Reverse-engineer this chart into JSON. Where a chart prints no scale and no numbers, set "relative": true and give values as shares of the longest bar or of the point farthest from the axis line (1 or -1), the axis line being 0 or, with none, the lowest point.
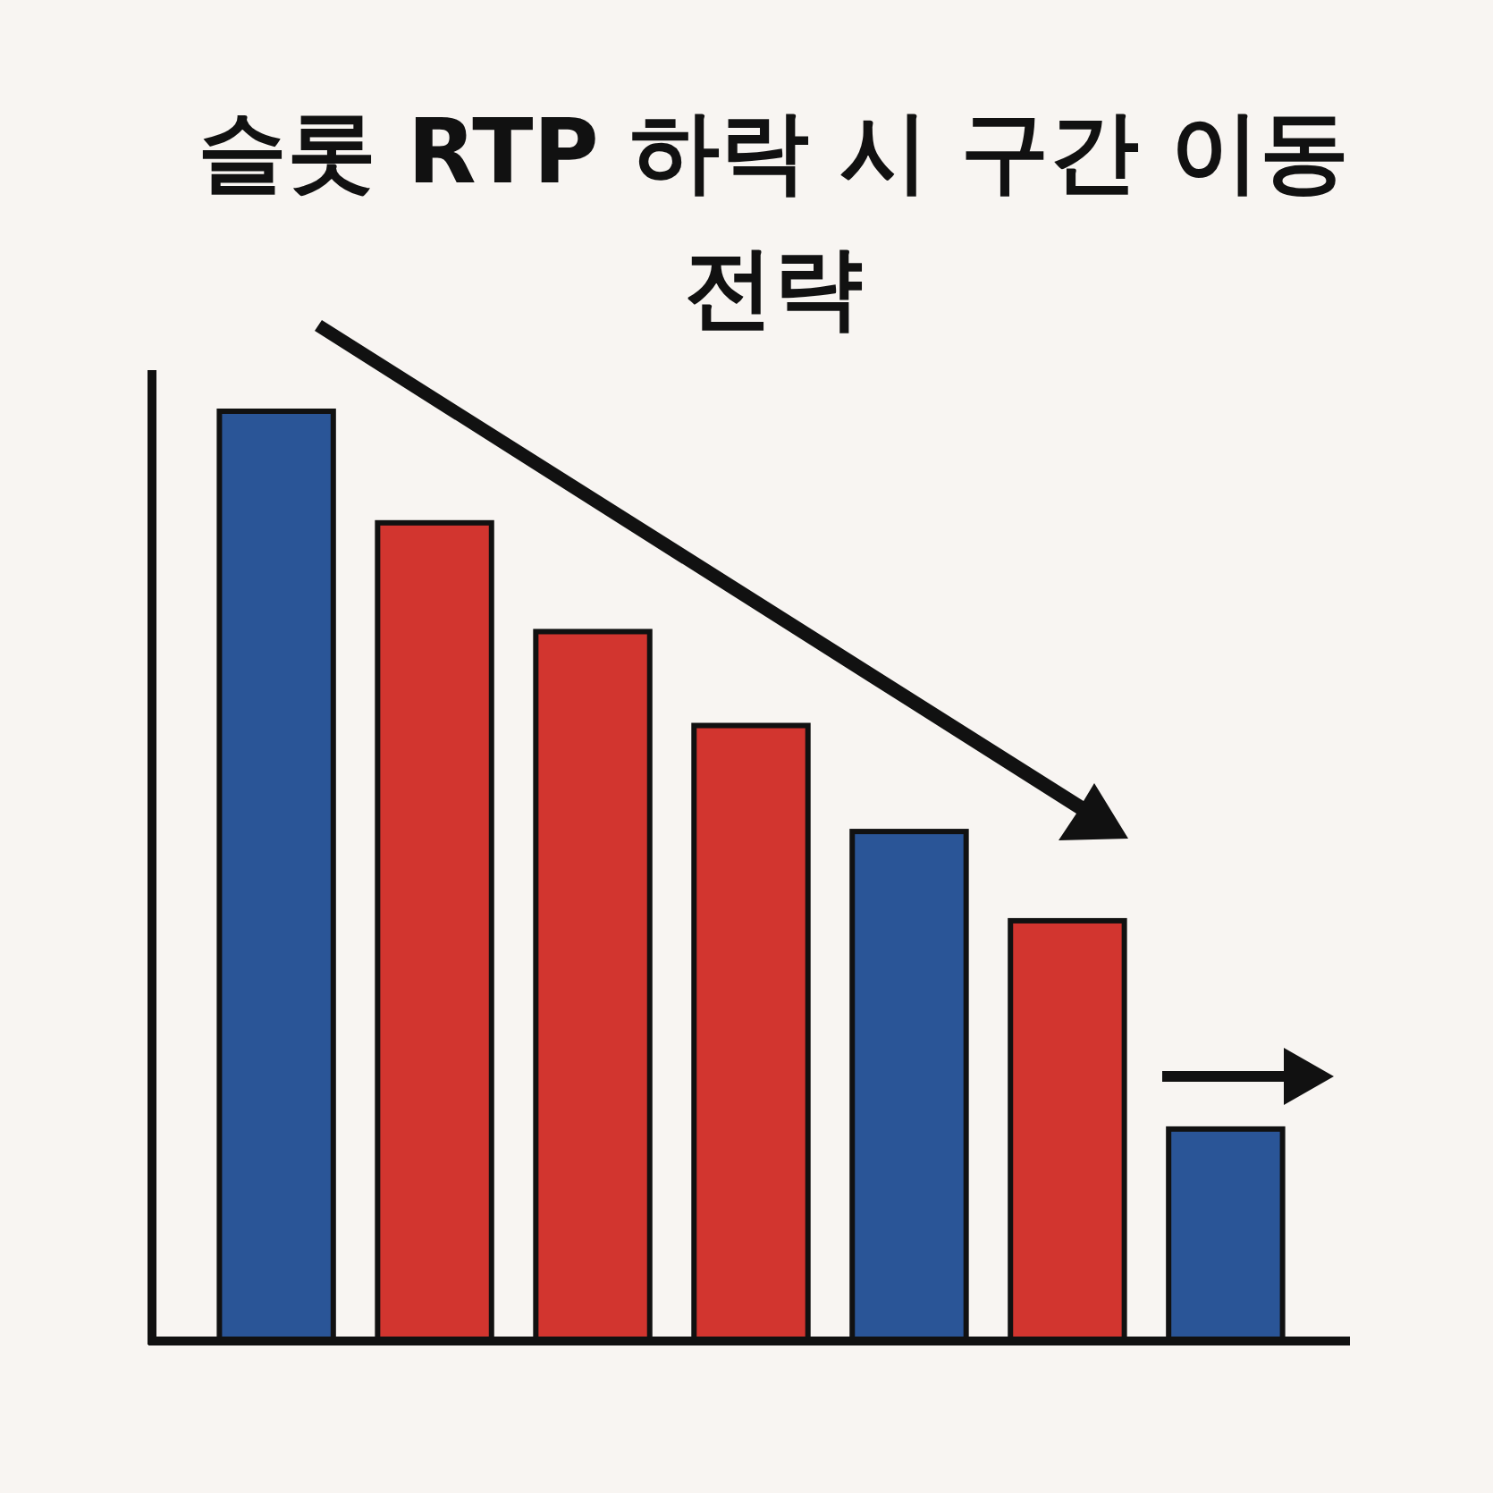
{
  "chart_data": {
    "type": "bar",
    "title": "슬롯 RTP 하락 시 구간 이동 전략",
    "relative": true,
    "categories": [
      null,
      null,
      null,
      null,
      null,
      null,
      null
    ],
    "values": [
      1,
      0.88,
      0.763,
      0.662,
      0.548,
      0.452,
      0.228
    ],
    "colors": [
      "#2a5597",
      "#d2352f",
      "#d2352f",
      "#d2352f",
      "#2a5597",
      "#d2352f",
      "#2a5597"
    ]
  }
}
